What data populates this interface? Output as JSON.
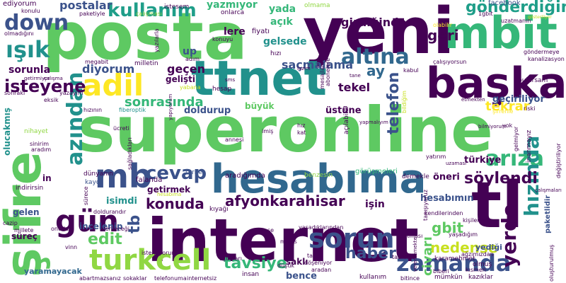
{
  "colors": {
    "purple": "#440154",
    "indigo": "#3b528b",
    "blue": "#31688e",
    "teal": "#21918c",
    "seagreen": "#1f9e89",
    "green": "#35b779",
    "lightgreen": "#5ec962",
    "lime": "#90d743",
    "yellow": "#c8e020",
    "brightyellow": "#fde725"
  },
  "words": [
    {
      "id": "posta",
      "text": "posta"
    },
    {
      "id": "yeni",
      "text": "yeni"
    },
    {
      "id": "superonline",
      "text": "superonline"
    },
    {
      "id": "internet",
      "text": "internet"
    },
    {
      "id": "hesabima",
      "text": "hesabıma"
    },
    {
      "id": "sifre",
      "text": "şifre"
    },
    {
      "id": "tl",
      "text": "tl"
    },
    {
      "id": "baska",
      "text": "başka"
    },
    {
      "id": "mbit",
      "text": "mbit"
    },
    {
      "id": "ttnet",
      "text": "ttnet"
    },
    {
      "id": "adil",
      "text": "adil"
    },
    {
      "id": "turkcell",
      "text": "turkcell"
    },
    {
      "id": "mb",
      "text": "mb"
    },
    {
      "id": "gun",
      "text": "gün"
    },
    {
      "id": "sorun",
      "text": "sorun"
    },
    {
      "id": "zamanda",
      "text": "zamanda"
    },
    {
      "id": "down",
      "text": "down"
    },
    {
      "id": "isik",
      "text": "ışık"
    },
    {
      "id": "altina",
      "text": "altına"
    },
    {
      "id": "ariza",
      "text": "arıza"
    },
    {
      "id": "cevap",
      "text": "cevap"
    },
    {
      "id": "azindan",
      "text": "azından"
    },
    {
      "id": "kullanim",
      "text": "kullanım"
    },
    {
      "id": "gonderdigim",
      "text": "gönderdiğim"
    },
    {
      "id": "hizinda",
      "text": "hızında"
    },
    {
      "id": "yerde",
      "text": "yerde"
    },
    {
      "id": "soylendi",
      "text": "söylendi"
    },
    {
      "id": "isteyene",
      "text": "isteyene"
    },
    {
      "id": "sonrasinda",
      "text": "sonrasında"
    },
    {
      "id": "afyonkarahisar",
      "text": "afyonkarahisar"
    },
    {
      "id": "konuda",
      "text": "konuda"
    },
    {
      "id": "edit",
      "text": "edit"
    },
    {
      "id": "tb",
      "text": "tb"
    },
    {
      "id": "haber",
      "text": "haber"
    },
    {
      "id": "tavsiye",
      "text": "tavsiye"
    },
    {
      "id": "telefon",
      "text": "telefon"
    },
    {
      "id": "tekrar",
      "text": "tekrar"
    },
    {
      "id": "nedense",
      "text": "nedense"
    },
    {
      "id": "gbit",
      "text": "gbit"
    },
    {
      "id": "civari",
      "text": "civarı"
    },
    {
      "id": "geri",
      "text": "geri"
    },
    {
      "id": "postalar",
      "text": "postalar"
    },
    {
      "id": "yazmiyor",
      "text": "yazmıyor"
    },
    {
      "id": "girdiginde",
      "text": "girdiğinde"
    },
    {
      "id": "diyorum",
      "text": "diyorum"
    },
    {
      "id": "sorunla",
      "text": "sorunla"
    },
    {
      "id": "saçmalama",
      "text": "saçmalama"
    },
    {
      "id": "ay",
      "text": "ay"
    },
    {
      "id": "gecen",
      "text": "geçen"
    },
    {
      "id": "gelisti",
      "text": "gelişti"
    },
    {
      "id": "gelsede",
      "text": "gelsede"
    },
    {
      "id": "acik",
      "text": "açık"
    },
    {
      "id": "lere",
      "text": "lere"
    },
    {
      "id": "up",
      "text": "up"
    },
    {
      "id": "yada",
      "text": "yada"
    },
    {
      "id": "tekel",
      "text": "tekel"
    },
    {
      "id": "ustune",
      "text": "üstüne"
    },
    {
      "id": "buyuk",
      "text": "büyük"
    },
    {
      "id": "doldurup",
      "text": "doldurup"
    },
    {
      "id": "geciriliyor",
      "text": "geçiriliyor"
    },
    {
      "id": "turkiye",
      "text": "türkiye"
    },
    {
      "id": "oneri",
      "text": "öneri"
    },
    {
      "id": "hesabimin",
      "text": "hesabımın"
    },
    {
      "id": "isin",
      "text": "işin"
    },
    {
      "id": "getirmek",
      "text": "getirmek"
    },
    {
      "id": "isimdi",
      "text": "isimdi"
    },
    {
      "id": "incelenip",
      "text": "incelenip"
    },
    {
      "id": "surec",
      "text": "süreç"
    },
    {
      "id": "gelen",
      "text": "gelen"
    },
    {
      "id": "in",
      "text": "in"
    },
    {
      "id": "yaramayacak",
      "text": "yaramayacak"
    },
    {
      "id": "bence",
      "text": "bence"
    },
    {
      "id": "sakli",
      "text": "saklı"
    },
    {
      "id": "yedigi",
      "text": "yediği"
    },
    {
      "id": "olucakmis",
      "text": "olucakmış"
    },
    {
      "id": "ediyorum",
      "text": "ediyorum"
    },
    {
      "id": "facebook",
      "text": "facebook"
    },
    {
      "id": "istesem",
      "text": "istesem"
    },
    {
      "id": "onlarca",
      "text": "onlarca"
    },
    {
      "id": "olmama",
      "text": "olmama"
    },
    {
      "id": "fiyati",
      "text": "fiyatı"
    },
    {
      "id": "hizi",
      "text": "hızı"
    },
    {
      "id": "hesap",
      "text": "hesap"
    },
    {
      "id": "tarife",
      "text": "tarife"
    },
    {
      "id": "falanda",
      "text": "falanda"
    },
    {
      "id": "dunyanin",
      "text": "dünyanın"
    },
    {
      "id": "kaydi",
      "text": "kaydı"
    },
    {
      "id": "indirirsin",
      "text": "indirirsin"
    },
    {
      "id": "aradigimda",
      "text": "aradığımda"
    },
    {
      "id": "gorusmeleri",
      "text": "görüşmeleri"
    },
    {
      "id": "benzesin",
      "text": "benzesin"
    },
    {
      "id": "demekle",
      "text": "demekle"
    },
    {
      "id": "kiyagi",
      "text": "kıyağı"
    },
    {
      "id": "ucreti",
      "text": "ücreti"
    },
    {
      "id": "hizinin",
      "text": "hızının"
    },
    {
      "id": "fiberoptik",
      "text": "fiberoptik"
    },
    {
      "id": "megabit",
      "text": "megabit"
    },
    {
      "id": "milletin",
      "text": "milletin"
    },
    {
      "id": "adim",
      "text": "adım"
    },
    {
      "id": "konuyu",
      "text": "konuyu"
    },
    {
      "id": "uzatmanin",
      "text": "uzatmanın"
    },
    {
      "id": "bulursam",
      "text": "bulursam"
    },
    {
      "id": "kabul",
      "text": "kabul"
    },
    {
      "id": "riski",
      "text": "riski"
    },
    {
      "id": "sifrenle",
      "text": "şifrenle"
    },
    {
      "id": "etmekten",
      "text": "etmekten"
    },
    {
      "id": "yok",
      "text": "yok"
    },
    {
      "id": "sinirim",
      "text": "sinirim"
    },
    {
      "id": "aradim",
      "text": "aradım"
    },
    {
      "id": "nihayet",
      "text": "nihayet"
    },
    {
      "id": "eksik",
      "text": "eksik"
    },
    {
      "id": "sonraki",
      "text": "sonraki"
    },
    {
      "id": "yazayim",
      "text": "yazayım"
    },
    {
      "id": "calisma",
      "text": "çalışma"
    },
    {
      "id": "olmadigini",
      "text": "olmadığını"
    },
    {
      "id": "konulu",
      "text": "konulu"
    },
    {
      "id": "paketiyle",
      "text": "paketiyle"
    },
    {
      "id": "calismasi",
      "text": "çalışması"
    },
    {
      "id": "abartmazsaniz",
      "text": "abartmazsanız"
    },
    {
      "id": "sokaklar",
      "text": "sokaklar"
    },
    {
      "id": "telefonuma",
      "text": "telefonuma"
    },
    {
      "id": "internetsiz",
      "text": "internetsiz"
    },
    {
      "id": "insan",
      "text": "insan"
    },
    {
      "id": "kullanim2",
      "text": "kullanım"
    },
    {
      "id": "bitince",
      "text": "bitince"
    },
    {
      "id": "mumkun",
      "text": "mümkün"
    },
    {
      "id": "kaziklar",
      "text": "kazıklar"
    },
    {
      "id": "olmus",
      "text": "olmuş"
    },
    {
      "id": "agzimizdan",
      "text": "ağzımızdan"
    },
    {
      "id": "biberi",
      "text": "biberi"
    },
    {
      "id": "kismen",
      "text": "kısmen"
    },
    {
      "id": "karamehmet",
      "text": "karamehmet"
    },
    {
      "id": "taahhut",
      "text": "taahhüt"
    },
    {
      "id": "satmasi",
      "text": "satması"
    },
    {
      "id": "yasadigim",
      "text": "yaşadığım"
    },
    {
      "id": "kisilerin",
      "text": "kişilerin"
    },
    {
      "id": "kendilerinden",
      "text": "kendilerinden"
    },
    {
      "id": "yasadiklarindan",
      "text": "yaşadıklarından"
    },
    {
      "id": "adrese",
      "text": "adrese"
    },
    {
      "id": "hizlisi",
      "text": "hızlısı"
    },
    {
      "id": "doldurandir",
      "text": "doldurandır"
    },
    {
      "id": "onuda",
      "text": "onuda"
    },
    {
      "id": "verilecegi",
      "text": "verileceği"
    },
    {
      "id": "millete",
      "text": "millete"
    },
    {
      "id": "cazip",
      "text": "cazip"
    },
    {
      "id": "istemiyorum",
      "text": "istemiyorum"
    },
    {
      "id": "vinn",
      "text": "vinn"
    },
    {
      "id": "acitiklari",
      "text": "açtıkları"
    },
    {
      "id": "dusuk",
      "text": "düşük"
    },
    {
      "id": "aradan",
      "text": "aradan"
    },
    {
      "id": "doseniyor",
      "text": "döşeniyor"
    },
    {
      "id": "tas",
      "text": "taş"
    },
    {
      "id": "itibari",
      "text": "itibarı"
    },
    {
      "id": "mayis",
      "text": "mayıs"
    },
    {
      "id": "annesi",
      "text": "annesi"
    },
    {
      "id": "imis",
      "text": "imiş"
    },
    {
      "id": "kat",
      "text": "kat"
    },
    {
      "id": "hiz",
      "text": "hız"
    },
    {
      "id": "yapmaliyim",
      "text": "yapmalıyım"
    },
    {
      "id": "paketlidir",
      "text": "paketlidir"
    },
    {
      "id": "inanmayiz",
      "text": "inanmayız"
    },
    {
      "id": "calisiyorsun",
      "text": "çalışıyorsun"
    },
    {
      "id": "gondermeye",
      "text": "göndermeye"
    },
    {
      "id": "kanalizasyon",
      "text": "kanalizasyon"
    },
    {
      "id": "olabilir",
      "text": "olabilir"
    },
    {
      "id": "1gbit",
      "text": "1gbit"
    },
    {
      "id": "bilmiyorum",
      "text": "bilmiyorum"
    },
    {
      "id": "gosteriliyor",
      "text": "gösteriliyor"
    },
    {
      "id": "hesabima_small",
      "text": "hesabıma"
    },
    {
      "id": "sms",
      "text": "sms"
    },
    {
      "id": "lazim",
      "text": "lazım"
    },
    {
      "id": "mesajlarin",
      "text": "mesajların"
    },
    {
      "id": "abonelere",
      "text": "abonelere"
    },
    {
      "id": "tane",
      "text": "tane"
    },
    {
      "id": "acilabildi",
      "text": "açılabildi"
    },
    {
      "id": "bildigim",
      "text": "bildiğim"
    },
    {
      "id": "yazilarla",
      "text": "yazılarla"
    },
    {
      "id": "saglandilari",
      "text": "sağladıkları"
    },
    {
      "id": "surece",
      "text": "sürece"
    },
    {
      "id": "degistiriliyor",
      "text": "değiştiriliyor"
    },
    {
      "id": "calismalari",
      "text": "çalışmaları"
    },
    {
      "id": "gelmiyor",
      "text": "gelmiyor"
    },
    {
      "id": "yatirim",
      "text": "yatırım"
    },
    {
      "id": "uzamasi",
      "text": "uzaması"
    },
    {
      "id": "tanisiyoruz",
      "text": "tanışıyoruz"
    },
    {
      "id": "olusturulmus",
      "text": "oluşturulmuş"
    },
    {
      "id": "verememekte",
      "text": "verememekte"
    },
    {
      "id": "yabana",
      "text": "yabana"
    },
    {
      "id": "yapiyorum",
      "text": "yapıyorum"
    },
    {
      "id": "getirmiyor",
      "text": "getirmiyor"
    }
  ]
}
